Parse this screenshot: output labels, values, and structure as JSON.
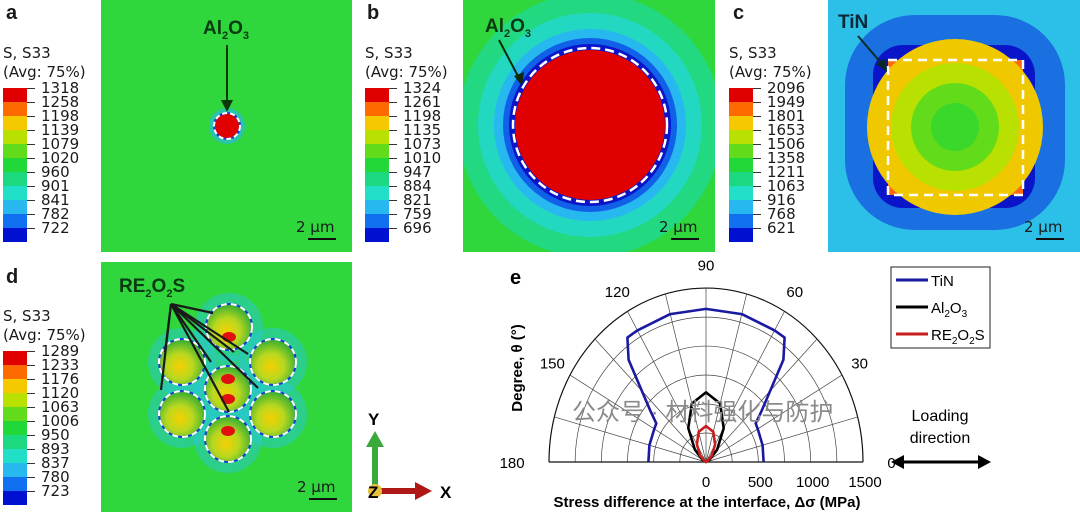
{
  "panels": {
    "a": {
      "label": "a",
      "legend_title": "S, S33",
      "legend_avg": "(Avg: 75%)",
      "colorbar": [
        "1318",
        "1258",
        "1198",
        "1139",
        "1079",
        "1020",
        "960",
        "901",
        "841",
        "782",
        "722"
      ],
      "annotation": "Al2O3",
      "scale": "2 µm"
    },
    "b": {
      "label": "b",
      "legend_title": "S, S33",
      "legend_avg": "(Avg: 75%)",
      "colorbar": [
        "1324",
        "1261",
        "1198",
        "1135",
        "1073",
        "1010",
        "947",
        "884",
        "821",
        "759",
        "696"
      ],
      "annotation": "Al2O3",
      "scale": "2 µm"
    },
    "c": {
      "label": "c",
      "legend_title": "S, S33",
      "legend_avg": "(Avg: 75%)",
      "colorbar": [
        "2096",
        "1949",
        "1801",
        "1653",
        "1506",
        "1358",
        "1211",
        "1063",
        "916",
        "768",
        "621"
      ],
      "annotation": "TiN",
      "scale": "2 µm"
    },
    "d": {
      "label": "d",
      "legend_title": "S, S33",
      "legend_avg": "(Avg: 75%)",
      "colorbar": [
        "1289",
        "1233",
        "1176",
        "1120",
        "1063",
        "1006",
        "950",
        "893",
        "837",
        "780",
        "723"
      ],
      "annotation": "RE2O2S",
      "scale": "2 µm"
    },
    "e": {
      "label": "e"
    }
  },
  "colorbar_colors": [
    "#e00000",
    "#ff6a00",
    "#f5c800",
    "#b8e000",
    "#62dc1a",
    "#22d838",
    "#1cd880",
    "#22e0c8",
    "#28b8f0",
    "#1070f0",
    "#0010d0"
  ],
  "axes_triad": {
    "y": "Y",
    "z": "Z",
    "x": "X"
  },
  "loading": {
    "line1": "Loading",
    "line2": "direction"
  },
  "watermark": "公众号 · 材料强化与防护",
  "chart_data": {
    "type": "polar-line",
    "xlabel": "Stress difference at the interface, Δσ (MPa)",
    "ylabel": "Degree, θ (°)",
    "angle_ticks": [
      "180",
      "150",
      "120",
      "90",
      "60",
      "30",
      "0"
    ],
    "radial_ticks": [
      "0",
      "500",
      "1000",
      "1500"
    ],
    "rlim": [
      0,
      1500
    ],
    "angle_range": [
      0,
      180
    ],
    "grid": true,
    "legend_position": "top-right",
    "series": [
      {
        "name": "TiN",
        "color": "#1a1aa0",
        "theta": [
          0,
          15,
          30,
          35,
          40,
          50,
          55,
          60,
          75,
          90,
          105,
          120,
          125,
          130,
          140,
          145,
          150,
          165,
          180
        ],
        "r": [
          550,
          560,
          570,
          580,
          700,
          1150,
          1310,
          1310,
          1320,
          1320,
          1320,
          1310,
          1310,
          1150,
          700,
          580,
          570,
          560,
          550
        ]
      },
      {
        "name": "Al2O3",
        "color": "#000000",
        "theta": [
          0,
          15,
          30,
          45,
          60,
          75,
          90,
          105,
          120,
          135,
          150,
          165,
          180
        ],
        "r": [
          0,
          3,
          38,
          150,
          338,
          522,
          600,
          522,
          338,
          150,
          38,
          3,
          0
        ]
      },
      {
        "name": "RE2O2S",
        "color": "#c81e1e",
        "theta": [
          0,
          15,
          30,
          45,
          60,
          75,
          90,
          105,
          120,
          135,
          150,
          165,
          180
        ],
        "r": [
          0,
          1,
          19,
          78,
          174,
          270,
          310,
          270,
          174,
          78,
          19,
          1,
          0
        ]
      }
    ]
  }
}
